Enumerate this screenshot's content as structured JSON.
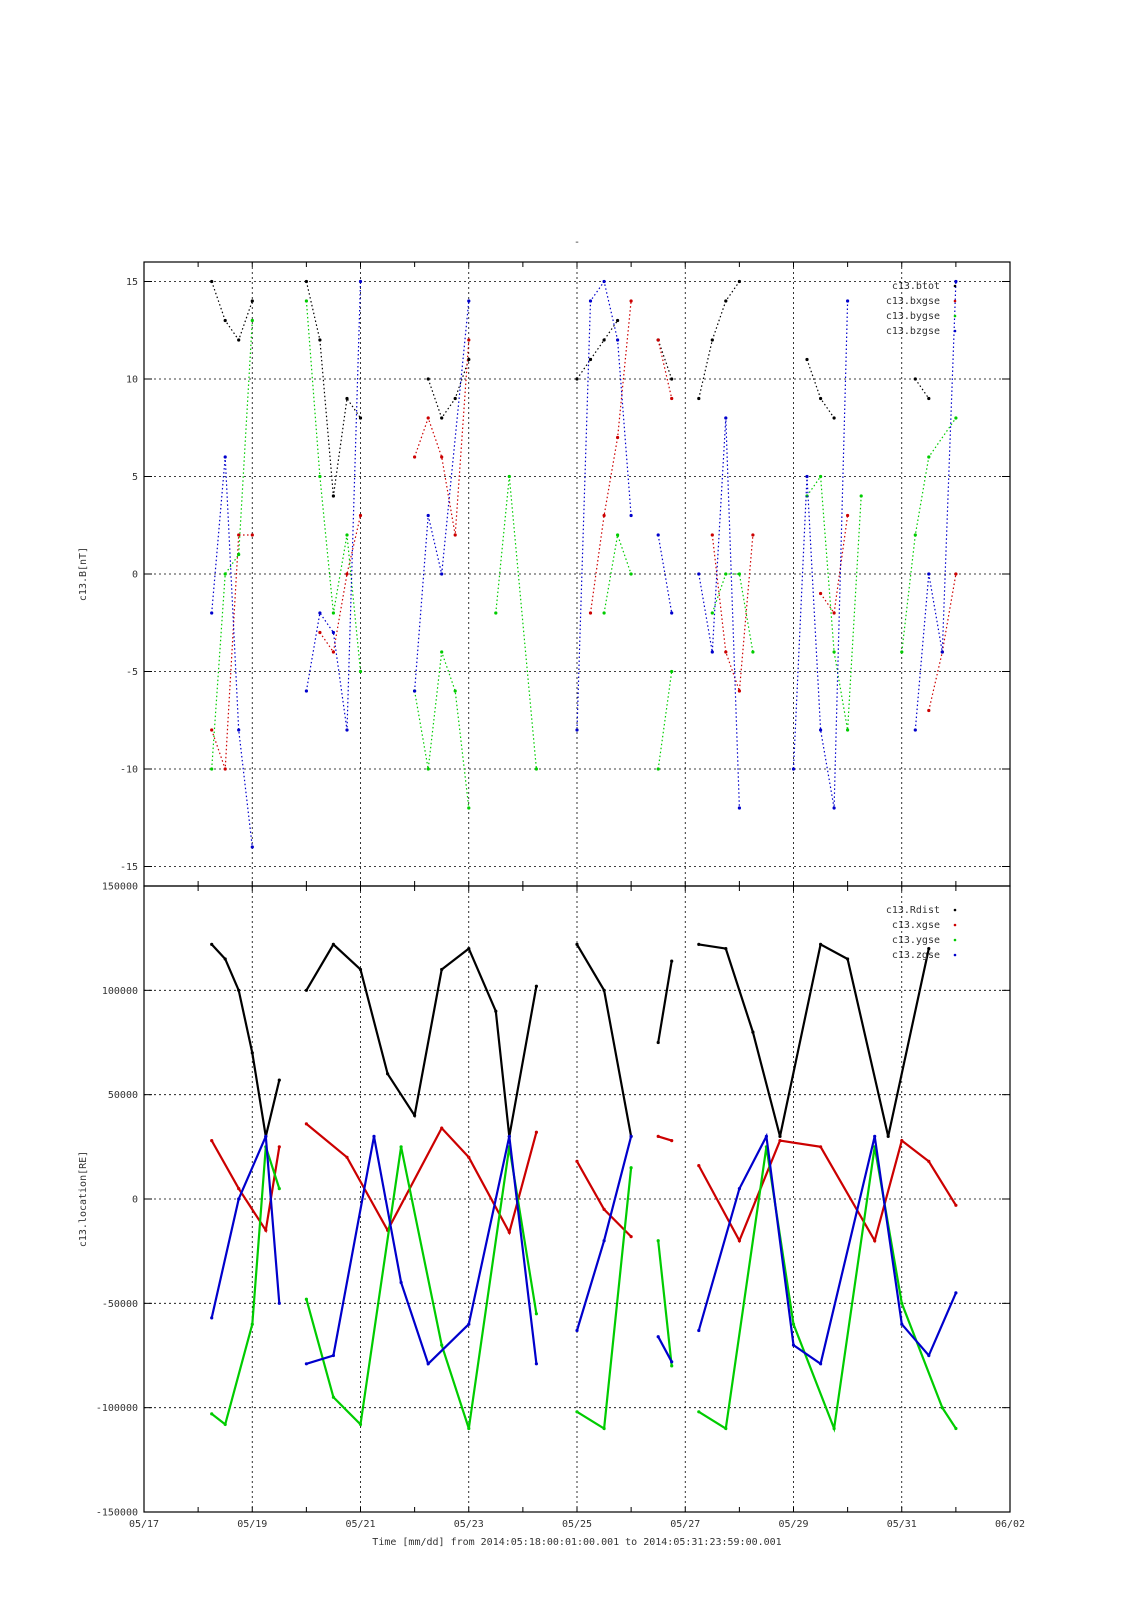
{
  "title": "-",
  "x_axis": {
    "label": "Time [mm/dd]  from 2014:05:18:00:01:00.001  to  2014:05:31:23:59:00.001",
    "tick_labels": [
      "05/17",
      "05/19",
      "05/21",
      "05/23",
      "05/25",
      "05/27",
      "05/29",
      "05/31",
      "06/02"
    ]
  },
  "chart_data": [
    {
      "type": "scatter",
      "ylabel": "c13.B[nT]",
      "ylim": [
        -16,
        16
      ],
      "xlim": [
        "2014-05-17",
        "2014-06-02"
      ],
      "y_tick_labels": [
        "15",
        "10",
        "5",
        "0",
        "-5",
        "-10",
        "-15"
      ],
      "grid": true,
      "legend_position": "top-right",
      "series": [
        {
          "name": "c13.btot",
          "color": "#000000",
          "segments": [
            {
              "x": [
                "05/18 06:00",
                "05/18 12:00",
                "05/18 18:00",
                "05/19 00:00"
              ],
              "y": [
                15,
                13,
                12,
                14
              ]
            },
            {
              "x": [
                "05/20 00:00",
                "05/20 06:00",
                "05/20 12:00",
                "05/20 18:00",
                "05/21 00:00"
              ],
              "y": [
                15,
                12,
                4,
                9,
                8
              ]
            },
            {
              "x": [
                "05/22 06:00",
                "05/22 12:00",
                "05/22 18:00",
                "05/23 00:00"
              ],
              "y": [
                10,
                8,
                9,
                11
              ]
            },
            {
              "x": [
                "05/25 00:00",
                "05/25 06:00",
                "05/25 12:00",
                "05/25 18:00"
              ],
              "y": [
                10,
                11,
                12,
                13
              ]
            },
            {
              "x": [
                "05/26 12:00",
                "05/26 18:00"
              ],
              "y": [
                12,
                10
              ]
            },
            {
              "x": [
                "05/27 06:00",
                "05/27 12:00",
                "05/27 18:00",
                "05/28 00:00"
              ],
              "y": [
                9,
                12,
                14,
                15
              ]
            },
            {
              "x": [
                "05/29 06:00",
                "05/29 12:00",
                "05/29 18:00"
              ],
              "y": [
                11,
                9,
                8
              ]
            },
            {
              "x": [
                "05/31 06:00",
                "05/31 12:00"
              ],
              "y": [
                10,
                9
              ]
            }
          ]
        },
        {
          "name": "c13.bxgse",
          "color": "#cc0000",
          "segments": [
            {
              "x": [
                "05/18 06:00",
                "05/18 12:00",
                "05/18 18:00",
                "05/19 00:00"
              ],
              "y": [
                -8,
                -10,
                2,
                2
              ]
            },
            {
              "x": [
                "05/20 06:00",
                "05/20 12:00",
                "05/20 18:00",
                "05/21 00:00"
              ],
              "y": [
                -3,
                -4,
                0,
                3
              ]
            },
            {
              "x": [
                "05/22 00:00",
                "05/22 06:00",
                "05/22 12:00",
                "05/22 18:00",
                "05/23 00:00"
              ],
              "y": [
                6,
                8,
                6,
                2,
                12
              ]
            },
            {
              "x": [
                "05/25 06:00",
                "05/25 12:00",
                "05/25 18:00",
                "05/26 00:00"
              ],
              "y": [
                -2,
                3,
                7,
                14
              ]
            },
            {
              "x": [
                "05/26 12:00",
                "05/26 18:00"
              ],
              "y": [
                12,
                9
              ]
            },
            {
              "x": [
                "05/27 12:00",
                "05/27 18:00",
                "05/28 00:00",
                "05/28 06:00"
              ],
              "y": [
                2,
                -4,
                -6,
                2
              ]
            },
            {
              "x": [
                "05/29 12:00",
                "05/29 18:00",
                "05/30 00:00"
              ],
              "y": [
                -1,
                -2,
                3
              ]
            },
            {
              "x": [
                "05/31 12:00",
                "05/31 18:00",
                "06/01 00:00"
              ],
              "y": [
                -7,
                -4,
                0
              ]
            }
          ]
        },
        {
          "name": "c13.bygse",
          "color": "#00cc00",
          "segments": [
            {
              "x": [
                "05/18 06:00",
                "05/18 12:00",
                "05/18 18:00",
                "05/19 00:00"
              ],
              "y": [
                -10,
                0,
                1,
                13
              ]
            },
            {
              "x": [
                "05/20 00:00",
                "05/20 06:00",
                "05/20 12:00",
                "05/20 18:00",
                "05/21 00:00"
              ],
              "y": [
                14,
                5,
                -2,
                2,
                -5
              ]
            },
            {
              "x": [
                "05/22 00:00",
                "05/22 06:00",
                "05/22 12:00",
                "05/22 18:00",
                "05/23 00:00"
              ],
              "y": [
                -6,
                -10,
                -4,
                -6,
                -12
              ]
            },
            {
              "x": [
                "05/23 12:00",
                "05/23 18:00",
                "05/24 06:00"
              ],
              "y": [
                -2,
                5,
                -10
              ]
            },
            {
              "x": [
                "05/25 12:00",
                "05/25 18:00",
                "05/26 00:00"
              ],
              "y": [
                -2,
                2,
                0
              ]
            },
            {
              "x": [
                "05/26 12:00",
                "05/26 18:00"
              ],
              "y": [
                -10,
                -5
              ]
            },
            {
              "x": [
                "05/27 12:00",
                "05/27 18:00",
                "05/28 00:00",
                "05/28 06:00"
              ],
              "y": [
                -2,
                0,
                0,
                -4
              ]
            },
            {
              "x": [
                "05/29 06:00",
                "05/29 12:00",
                "05/29 18:00",
                "05/30 00:00",
                "05/30 06:00"
              ],
              "y": [
                4,
                5,
                -4,
                -8,
                4
              ]
            },
            {
              "x": [
                "05/31 00:00",
                "05/31 06:00",
                "05/31 12:00",
                "06/01 00:00"
              ],
              "y": [
                -4,
                2,
                6,
                8
              ]
            }
          ]
        },
        {
          "name": "c13.bzgse",
          "color": "#0000cc",
          "segments": [
            {
              "x": [
                "05/18 06:00",
                "05/18 12:00",
                "05/18 18:00",
                "05/19 00:00"
              ],
              "y": [
                -2,
                6,
                -8,
                -14
              ]
            },
            {
              "x": [
                "05/20 00:00",
                "05/20 06:00",
                "05/20 12:00",
                "05/20 18:00",
                "05/21 00:00"
              ],
              "y": [
                -6,
                -2,
                -3,
                -8,
                15
              ]
            },
            {
              "x": [
                "05/22 00:00",
                "05/22 06:00",
                "05/22 12:00",
                "05/23 00:00"
              ],
              "y": [
                -6,
                3,
                0,
                14
              ]
            },
            {
              "x": [
                "05/25 00:00",
                "05/25 06:00",
                "05/25 12:00",
                "05/25 18:00",
                "05/26 00:00"
              ],
              "y": [
                -8,
                14,
                15,
                12,
                3
              ]
            },
            {
              "x": [
                "05/26 12:00",
                "05/26 18:00"
              ],
              "y": [
                2,
                -2
              ]
            },
            {
              "x": [
                "05/27 06:00",
                "05/27 12:00",
                "05/27 18:00",
                "05/28 00:00"
              ],
              "y": [
                0,
                -4,
                8,
                -12
              ]
            },
            {
              "x": [
                "05/29 00:00",
                "05/29 06:00",
                "05/29 12:00",
                "05/29 18:00",
                "05/30 00:00"
              ],
              "y": [
                -10,
                5,
                -8,
                -12,
                14
              ]
            },
            {
              "x": [
                "05/31 06:00",
                "05/31 12:00",
                "05/31 18:00",
                "06/01 00:00"
              ],
              "y": [
                -8,
                0,
                -4,
                15
              ]
            }
          ]
        }
      ]
    },
    {
      "type": "scatter",
      "ylabel": "c13.location[RE]",
      "ylim": [
        -150000,
        150000
      ],
      "xlim": [
        "2014-05-17",
        "2014-06-02"
      ],
      "y_tick_labels": [
        "150000",
        "100000",
        "50000",
        "0",
        "-50000",
        "-100000",
        "-150000"
      ],
      "grid": true,
      "legend_position": "top-right",
      "series": [
        {
          "name": "c13.Rdist",
          "color": "#000000",
          "segments": [
            {
              "x": [
                "05/18 06:00",
                "05/18 12:00",
                "05/18 18:00",
                "05/19 00:00",
                "05/19 06:00",
                "05/19 12:00"
              ],
              "y": [
                122000,
                115000,
                100000,
                70000,
                30000,
                57000
              ]
            },
            {
              "x": [
                "05/20 00:00",
                "05/20 12:00",
                "05/21 00:00",
                "05/21 12:00",
                "05/22 00:00",
                "05/22 12:00",
                "05/23 00:00",
                "05/23 12:00",
                "05/23 18:00",
                "05/24 06:00"
              ],
              "y": [
                100000,
                122000,
                110000,
                60000,
                40000,
                110000,
                120000,
                90000,
                30000,
                102000
              ]
            },
            {
              "x": [
                "05/25 00:00",
                "05/25 12:00",
                "05/26 00:00"
              ],
              "y": [
                122000,
                100000,
                30000
              ]
            },
            {
              "x": [
                "05/26 12:00",
                "05/26 18:00"
              ],
              "y": [
                75000,
                114000
              ]
            },
            {
              "x": [
                "05/27 06:00",
                "05/27 18:00",
                "05/28 06:00",
                "05/28 18:00",
                "05/29 12:00",
                "05/30 00:00",
                "05/30 18:00",
                "05/31 12:00"
              ],
              "y": [
                122000,
                120000,
                80000,
                30000,
                122000,
                115000,
                30000,
                120000
              ]
            }
          ]
        },
        {
          "name": "c13.xgse",
          "color": "#cc0000",
          "segments": [
            {
              "x": [
                "05/18 06:00",
                "05/18 18:00",
                "05/19 06:00",
                "05/19 12:00"
              ],
              "y": [
                28000,
                5000,
                -15000,
                25000
              ]
            },
            {
              "x": [
                "05/20 00:00",
                "05/20 18:00",
                "05/21 12:00",
                "05/22 12:00",
                "05/23 00:00",
                "05/23 18:00",
                "05/24 06:00"
              ],
              "y": [
                36000,
                20000,
                -15000,
                34000,
                20000,
                -16000,
                32000
              ]
            },
            {
              "x": [
                "05/25 00:00",
                "05/25 12:00",
                "05/26 00:00"
              ],
              "y": [
                18000,
                -5000,
                -18000
              ]
            },
            {
              "x": [
                "05/26 12:00",
                "05/26 18:00"
              ],
              "y": [
                30000,
                28000
              ]
            },
            {
              "x": [
                "05/27 06:00",
                "05/28 00:00",
                "05/28 18:00",
                "05/29 12:00",
                "05/30 12:00",
                "05/31 00:00",
                "05/31 12:00",
                "06/01 00:00"
              ],
              "y": [
                16000,
                -20000,
                28000,
                25000,
                -20000,
                28000,
                18000,
                -3000
              ]
            }
          ]
        },
        {
          "name": "c13.ygse",
          "color": "#00cc00",
          "segments": [
            {
              "x": [
                "05/18 06:00",
                "05/18 12:00",
                "05/19 00:00",
                "05/19 06:00",
                "05/19 12:00"
              ],
              "y": [
                -103000,
                -108000,
                -60000,
                25000,
                5000
              ]
            },
            {
              "x": [
                "05/20 00:00",
                "05/20 12:00",
                "05/21 00:00",
                "05/21 18:00",
                "05/22 12:00",
                "05/23 00:00",
                "05/23 18:00",
                "05/24 06:00"
              ],
              "y": [
                -48000,
                -95000,
                -108000,
                25000,
                -70000,
                -110000,
                25000,
                -55000
              ]
            },
            {
              "x": [
                "05/25 00:00",
                "05/25 12:00",
                "05/26 00:00"
              ],
              "y": [
                -102000,
                -110000,
                15000
              ]
            },
            {
              "x": [
                "05/26 12:00",
                "05/26 18:00"
              ],
              "y": [
                -20000,
                -80000
              ]
            },
            {
              "x": [
                "05/27 06:00",
                "05/27 18:00",
                "05/28 12:00",
                "05/29 00:00",
                "05/29 18:00",
                "05/30 12:00",
                "05/31 00:00",
                "05/31 18:00",
                "06/01 00:00"
              ],
              "y": [
                -102000,
                -110000,
                25000,
                -60000,
                -110000,
                25000,
                -50000,
                -100000,
                -110000
              ]
            }
          ]
        },
        {
          "name": "c13.zgse",
          "color": "#0000cc",
          "segments": [
            {
              "x": [
                "05/18 06:00",
                "05/18 18:00",
                "05/19 06:00",
                "05/19 12:00"
              ],
              "y": [
                -57000,
                0,
                30000,
                -50000
              ]
            },
            {
              "x": [
                "05/20 00:00",
                "05/20 12:00",
                "05/21 06:00",
                "05/21 18:00",
                "05/22 06:00",
                "05/23 00:00",
                "05/23 18:00",
                "05/24 06:00"
              ],
              "y": [
                -79000,
                -75000,
                30000,
                -40000,
                -79000,
                -60000,
                30000,
                -79000
              ]
            },
            {
              "x": [
                "05/25 00:00",
                "05/25 12:00",
                "05/26 00:00"
              ],
              "y": [
                -63000,
                -20000,
                30000
              ]
            },
            {
              "x": [
                "05/26 12:00",
                "05/26 18:00"
              ],
              "y": [
                -66000,
                -78000
              ]
            },
            {
              "x": [
                "05/27 06:00",
                "05/28 00:00",
                "05/28 12:00",
                "05/29 00:00",
                "05/29 12:00",
                "05/30 12:00",
                "05/31 00:00",
                "05/31 12:00",
                "06/01 00:00"
              ],
              "y": [
                -63000,
                5000,
                30000,
                -70000,
                -79000,
                30000,
                -60000,
                -75000,
                -45000
              ]
            }
          ]
        }
      ]
    }
  ]
}
